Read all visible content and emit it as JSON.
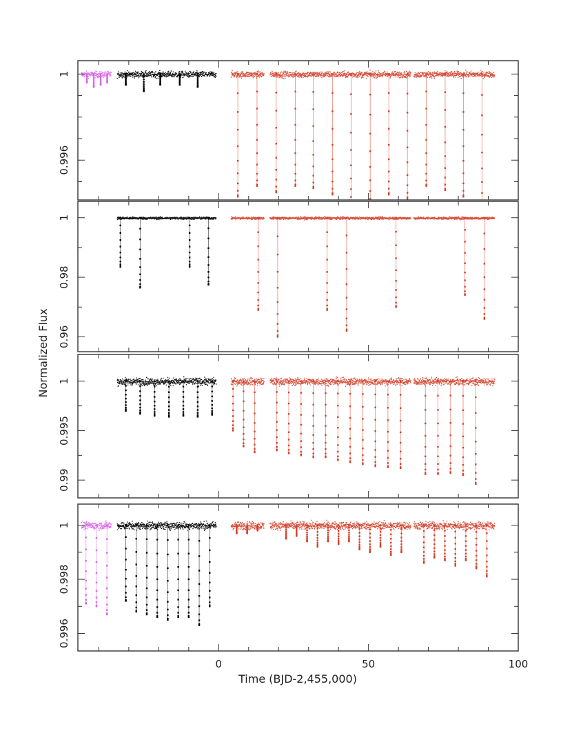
{
  "chart_data": {
    "type": "scatter",
    "ylabel": "Normalized Flux",
    "xlabel": "Time (BJD-2,455,000)",
    "xlim": [
      -47,
      100
    ],
    "xticks": [
      0,
      50,
      100
    ],
    "colors": {
      "earlier": "#d966e8",
      "middle": "#000000",
      "later": "#d4402a",
      "frame": "#333333"
    },
    "panels": [
      {
        "ylim": [
          0.99415,
          1.00062
        ],
        "yticks": [
          {
            "value": 1,
            "label": "1"
          },
          {
            "value": 0.996,
            "label": "0.996"
          }
        ],
        "ytick_minor": [
          0.999,
          0.998,
          0.997,
          0.995
        ],
        "noise": 0.00014,
        "segments": [
          {
            "color": "earlier",
            "start": -46,
            "end": -36,
            "transits": [
              -44.0,
              -41.7,
              -39.4,
              -37.2
            ],
            "depths": [
              0.0004,
              0.0006,
              0.0005,
              0.0004
            ]
          },
          {
            "color": "middle",
            "start": -34,
            "end": -1,
            "transits": [
              -31.0,
              -25.0,
              -19.5,
              -13.0,
              -7.0
            ],
            "depths": [
              0.0005,
              0.0008,
              0.0005,
              0.0005,
              0.0006
            ]
          },
          {
            "color": "later",
            "start": 4,
            "end": 15,
            "transits": [
              6.4,
              12.8
            ],
            "depths": [
              0.0057,
              0.0052
            ]
          },
          {
            "color": "later",
            "start": 17,
            "end": 64,
            "transits": [
              19.2,
              25.6,
              31.6,
              38.0,
              44.2,
              50.6,
              56.8,
              63.0
            ],
            "depths": [
              0.0055,
              0.0052,
              0.0053,
              0.0056,
              0.006,
              0.0061,
              0.0056,
              0.0058
            ]
          },
          {
            "color": "later",
            "start": 65,
            "end": 92,
            "transits": [
              69.3,
              75.6,
              81.7,
              87.9
            ],
            "depths": [
              0.0052,
              0.0054,
              0.0057,
              0.0062
            ]
          }
        ]
      },
      {
        "ylim": [
          0.955,
          1.0055
        ],
        "yticks": [
          {
            "value": 1,
            "label": "1"
          },
          {
            "value": 0.98,
            "label": "0.98"
          },
          {
            "value": 0.96,
            "label": "0.96"
          }
        ],
        "ytick_minor": [
          0.99,
          0.97
        ],
        "noise": 0.0004,
        "segments": [
          {
            "color": "middle",
            "start": -34,
            "end": -1,
            "transits": [
              -32.8,
              -26.2,
              -9.7,
              -3.4
            ],
            "depths": [
              0.0165,
              0.0235,
              0.0165,
              0.0225
            ]
          },
          {
            "color": "later",
            "start": 4,
            "end": 15,
            "transits": [
              13.2
            ],
            "depths": [
              0.031
            ]
          },
          {
            "color": "later",
            "start": 17,
            "end": 64,
            "transits": [
              19.7,
              36.2,
              42.7,
              59.2
            ],
            "depths": [
              0.04,
              0.031,
              0.038,
              0.03
            ]
          },
          {
            "color": "later",
            "start": 65,
            "end": 92,
            "transits": [
              82.2,
              88.7
            ],
            "depths": [
              0.026,
              0.034
            ]
          }
        ]
      },
      {
        "ylim": [
          0.9882,
          1.0027
        ],
        "yticks": [
          {
            "value": 1,
            "label": "1"
          },
          {
            "value": 0.995,
            "label": "0.995"
          },
          {
            "value": 0.99,
            "label": "0.99"
          }
        ],
        "ytick_minor": [
          0.9975,
          0.9925
        ],
        "noise": 0.00035,
        "segments": [
          {
            "color": "middle",
            "start": -34,
            "end": -1,
            "transits": [
              -31.0,
              -26.2,
              -21.4,
              -16.6,
              -11.8,
              -7.0,
              -2.2
            ],
            "depths": [
              0.003,
              0.0033,
              0.0035,
              0.0036,
              0.0035,
              0.0036,
              0.0034
            ]
          },
          {
            "color": "later",
            "start": 4,
            "end": 15,
            "transits": [
              4.8,
              8.3,
              12.0
            ],
            "depths": [
              0.005,
              0.0066,
              0.0072
            ]
          },
          {
            "color": "later",
            "start": 17,
            "end": 64,
            "transits": [
              19.4,
              23.4,
              27.5,
              31.6,
              35.7,
              39.8,
              43.9,
              48.1,
              52.3,
              56.5,
              60.7
            ],
            "depths": [
              0.007,
              0.0073,
              0.0075,
              0.0077,
              0.0077,
              0.008,
              0.0082,
              0.0084,
              0.0086,
              0.0087,
              0.0088
            ]
          },
          {
            "color": "later",
            "start": 65,
            "end": 92,
            "transits": [
              69.0,
              73.2,
              77.4,
              81.6,
              85.8
            ],
            "depths": [
              0.0094,
              0.0094,
              0.0093,
              0.0095,
              0.0104
            ]
          }
        ]
      },
      {
        "ylim": [
          0.99535,
          1.00078
        ],
        "yticks": [
          {
            "value": 1,
            "label": "1"
          },
          {
            "value": 0.998,
            "label": "0.998"
          },
          {
            "value": 0.996,
            "label": "0.996"
          }
        ],
        "ytick_minor": [
          0.999,
          0.997
        ],
        "noise": 0.00014,
        "segments": [
          {
            "color": "earlier",
            "start": -46,
            "end": -36,
            "transits": [
              -44.3,
              -40.8,
              -37.3
            ],
            "depths": [
              0.0029,
              0.003,
              0.0033
            ]
          },
          {
            "color": "middle",
            "start": -34,
            "end": -1,
            "transits": [
              -31.0,
              -27.5,
              -24.0,
              -20.5,
              -17.0,
              -13.5,
              -10.0,
              -6.5,
              -3.0
            ],
            "depths": [
              0.0028,
              0.0032,
              0.0033,
              0.0034,
              0.0035,
              0.0034,
              0.0034,
              0.0037,
              0.003
            ]
          },
          {
            "color": "later",
            "start": 4,
            "end": 15,
            "transits": [
              6.0,
              9.5,
              13.0
            ],
            "depths": [
              0.0003,
              0.0003,
              0.0002
            ]
          },
          {
            "color": "later",
            "start": 17,
            "end": 64,
            "transits": [
              22.5,
              26.0,
              29.5,
              33.0,
              36.5,
              40.0,
              43.5,
              47.0,
              50.5,
              54.0,
              57.5,
              61.0
            ],
            "depths": [
              0.0005,
              0.0004,
              0.0006,
              0.0008,
              0.0006,
              0.0007,
              0.0006,
              0.0009,
              0.001,
              0.0008,
              0.0011,
              0.001
            ]
          },
          {
            "color": "later",
            "start": 65,
            "end": 92,
            "transits": [
              68.5,
              72.0,
              75.5,
              79.0,
              82.5,
              86.0,
              89.5
            ],
            "depths": [
              0.0014,
              0.0012,
              0.0013,
              0.0015,
              0.0013,
              0.0016,
              0.0019
            ]
          }
        ]
      }
    ]
  }
}
